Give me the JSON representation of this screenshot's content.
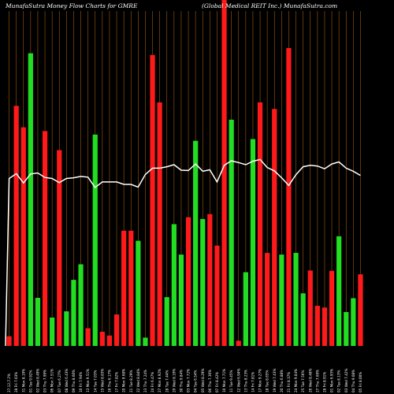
{
  "header": {
    "left_title": "MunafaSutra  Money Flow  Charts for GMRE",
    "right_title": "(Global Medical REIT Inc.) MunafaSutra.com"
  },
  "colors": {
    "background": "#000000",
    "grid": "#a05a14",
    "up": "#22dd22",
    "down": "#ff1a1a",
    "line": "#ffffff",
    "text": "#ffffff"
  },
  "chart_data": {
    "type": "bar",
    "title": "MunafaSutra Money Flow Charts for GMRE",
    "grid": true,
    "ylim": [
      0,
      100
    ],
    "categories": [
      "27,12,7.2% ",
      "28 Fri 7.03% ",
      "31 Mon 8.19% ",
      "01 Tue 9.92% ",
      "02 Wed 8.49% ",
      "03 Thu 7.99% ",
      "06 Mon 7.51% ",
      "07 Tue 6.27% ",
      "08 Wed 6.43% ",
      "09 Thu 8.60% ",
      "10 Fri 7.94% ",
      "13 Mon 9.51% ",
      "14 Tue 7.03% ",
      "15 Wed 8.83% ",
      "16 Thu 6.17% ",
      "17 Fri 7.82% ",
      "20 Mon 9.68% ",
      "21 Tue 8.29% ",
      "22 Wed 8.84% ",
      "23 Thu 7.24% ",
      "24 Fri 6.47% ",
      "27 Mon 8.92% ",
      "28 Tue 7.44% ",
      "29 Wed 8.19% ",
      "30 Thu 9.84% ",
      "03 Mon 7.72% ",
      "04 Tue 6.54% ",
      "05 Wed 8.29% ",
      "06 Thu 7.36% ",
      "07 Fri 8.42% ",
      "10 Mon 7.71% ",
      "11 Tue 9.45% ",
      "12 Wed 6.94% ",
      "13 Thu 8.23% ",
      "14 Fri 7.81% ",
      "17 Mon 9.27% ",
      "18 Tue 8.65% ",
      "19 Wed 7.43% ",
      "20 Thu 6.88% ",
      "21 Fri 8.37% ",
      "24 Mon 9.04% ",
      "25 Tue 7.56% ",
      "26 Wed 8.48% ",
      "27 Thu 7.69% ",
      "28 Fri 8.91% ",
      "01 Mon 6.95% ",
      "02 Tue 8.13% ",
      "03 Wed 7.42% ",
      "04 Thu 9.08% ",
      "05 Fri 8.00% "
    ],
    "colors": [
      "red",
      "red",
      "red",
      "green",
      "green",
      "red",
      "green",
      "red",
      "green",
      "green",
      "green",
      "red",
      "green",
      "red",
      "red",
      "red",
      "red",
      "red",
      "green",
      "green",
      "red",
      "red",
      "green",
      "green",
      "green",
      "red",
      "green",
      "green",
      "red",
      "red",
      "red",
      "green",
      "red",
      "green",
      "green",
      "red",
      "red",
      "red",
      "green",
      "red",
      "green",
      "green",
      "red",
      "red",
      "red",
      "red",
      "green",
      "green",
      "green",
      "red"
    ],
    "values": [
      2.8,
      69.4,
      63.2,
      84.6,
      13.9,
      62.1,
      8.2,
      56.6,
      10.0,
      19.1,
      23.6,
      5.1,
      61.1,
      4.1,
      3.0,
      9.1,
      33.3,
      33.3,
      30.4,
      2.4,
      84.1,
      70.4,
      14.1,
      35.2,
      26.4,
      37.2,
      59.3,
      36.7,
      38.1,
      29.0,
      100,
      65.4,
      1.5,
      21.3,
      59.8,
      70.4,
      26.9,
      68.5,
      26.4,
      86.1,
      26.9,
      15.2,
      21.8,
      11.6,
      11.1,
      21.7,
      31.7,
      9.8,
      13.8,
      20.7
    ],
    "line": [
      48.4,
      49.8,
      47.1,
      49.7,
      50.0,
      48.7,
      48.4,
      47.2,
      48.4,
      48.6,
      49.0,
      48.8,
      45.8,
      47.4,
      47.4,
      47.4,
      46.7,
      46.7,
      45.9,
      49.6,
      51.4,
      51.4,
      51.8,
      52.4,
      50.8,
      50.7,
      52.6,
      50.5,
      50.9,
      47.4,
      52.2,
      53.5,
      53.0,
      52.4,
      53.4,
      53.9,
      51.6,
      50.6,
      48.6,
      46.4,
      49.5,
      51.8,
      52.2,
      52.0,
      51.2,
      52.6,
      53.2,
      51.4,
      50.5,
      49.3
    ]
  }
}
